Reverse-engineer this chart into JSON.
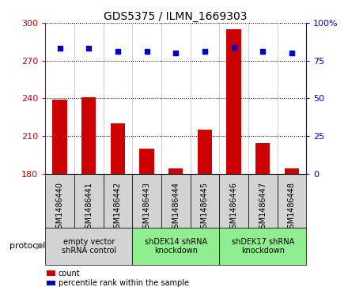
{
  "title": "GDS5375 / ILMN_1669303",
  "samples": [
    "GSM1486440",
    "GSM1486441",
    "GSM1486442",
    "GSM1486443",
    "GSM1486444",
    "GSM1486445",
    "GSM1486446",
    "GSM1486447",
    "GSM1486448"
  ],
  "counts": [
    239,
    241,
    220,
    200,
    184,
    215,
    295,
    204,
    184
  ],
  "percentiles": [
    83,
    83,
    81,
    81,
    80,
    81,
    84,
    81,
    80
  ],
  "ylim_left": [
    180,
    300
  ],
  "ylim_right": [
    0,
    100
  ],
  "yticks_left": [
    180,
    210,
    240,
    270,
    300
  ],
  "yticks_right": [
    0,
    25,
    50,
    75,
    100
  ],
  "bar_color": "#cc0000",
  "point_color": "#0000cc",
  "groups": [
    {
      "label": "empty vector\nshRNA control",
      "start": 0,
      "end": 3,
      "color": "#d3d3d3"
    },
    {
      "label": "shDEK14 shRNA\nknockdown",
      "start": 3,
      "end": 6,
      "color": "#90ee90"
    },
    {
      "label": "shDEK17 shRNA\nknockdown",
      "start": 6,
      "end": 9,
      "color": "#90ee90"
    }
  ],
  "protocol_label": "protocol",
  "legend_count_label": "count",
  "legend_percentile_label": "percentile rank within the sample",
  "sample_box_color": "#d3d3d3",
  "bar_width": 0.5,
  "title_fontsize": 10,
  "axis_fontsize": 8,
  "sample_fontsize": 7,
  "group_fontsize": 7,
  "legend_fontsize": 7
}
